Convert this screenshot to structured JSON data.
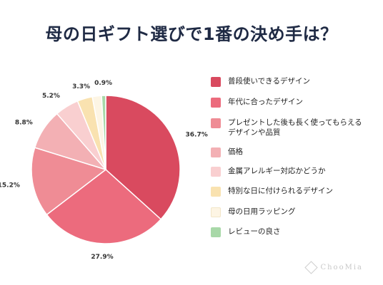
{
  "header": {
    "title": "母の日ギフト選びで1番の決め手は？"
  },
  "brand": {
    "name": "ChooMia",
    "icon": "diamond-logo-icon"
  },
  "chart_data": {
    "type": "pie",
    "title": "母の日ギフト選びで1番の決め手は？",
    "start_angle": "12 o'clock",
    "direction": "clockwise",
    "legend_position": "right",
    "slices": [
      {
        "label": "普段使いできるデザイン",
        "value": 36.7,
        "value_label": "36.7%",
        "color": "#d94a5f"
      },
      {
        "label": "年代に合ったデザイン",
        "value": 27.9,
        "value_label": "27.9%",
        "color": "#ec6b7d"
      },
      {
        "label": "プレゼントした後も長く使ってもらえる\nデザインや品質",
        "value": 15.2,
        "value_label": "15.2%",
        "color": "#ef8c95"
      },
      {
        "label": "価格",
        "value": 8.8,
        "value_label": "8.8%",
        "color": "#f3b0b4"
      },
      {
        "label": "金属アレルギー対応かどうか",
        "value": 5.2,
        "value_label": "5.2%",
        "color": "#f9cfd0"
      },
      {
        "label": "特別な日に付けられるデザイン",
        "value": 3.3,
        "value_label": "3.3%",
        "color": "#f9e2b0"
      },
      {
        "label": "母の日用ラッピング",
        "value": 2.0,
        "value_label": "",
        "color": "#fdf5e4"
      },
      {
        "label": "レビューの良さ",
        "value": 0.9,
        "value_label": "0.9%",
        "color": "#a8d8a8"
      }
    ]
  }
}
